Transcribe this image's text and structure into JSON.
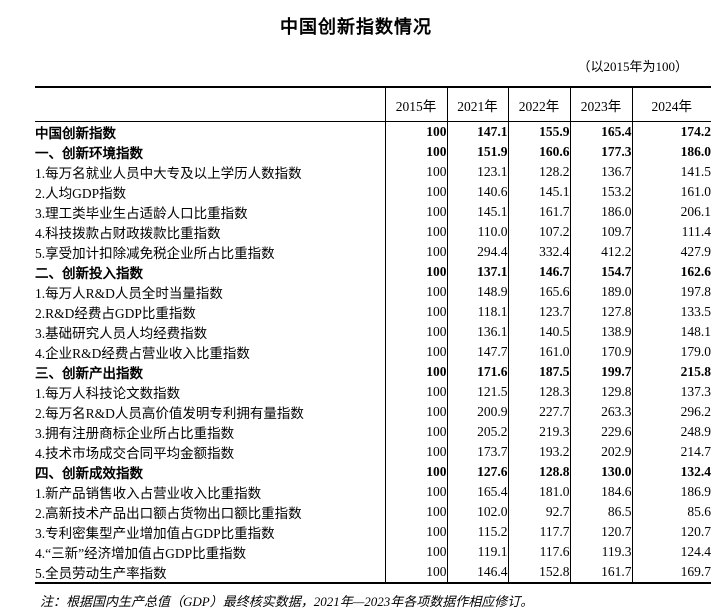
{
  "page": {
    "title": "中国创新指数情况",
    "subtitle": "（以2015年为100）",
    "footnote": "注：根据国内生产总值（GDP）最终核实数据，2021年—2023年各项数据作相应修订。"
  },
  "table": {
    "year_headers": [
      "2015年",
      "2021年",
      "2022年",
      "2023年",
      "2024年"
    ],
    "rows": [
      {
        "label": "中国创新指数",
        "level": 0,
        "bold": true,
        "values": [
          "100",
          "147.1",
          "155.9",
          "165.4",
          "174.2"
        ]
      },
      {
        "label": "一、创新环境指数",
        "level": 1,
        "bold": true,
        "values": [
          "100",
          "151.9",
          "160.6",
          "177.3",
          "186.0"
        ]
      },
      {
        "label": "1.每万名就业人员中大专及以上学历人数指数",
        "level": 2,
        "bold": false,
        "values": [
          "100",
          "123.1",
          "128.2",
          "136.7",
          "141.5"
        ]
      },
      {
        "label": "2.人均GDP指数",
        "level": 2,
        "bold": false,
        "values": [
          "100",
          "140.6",
          "145.1",
          "153.2",
          "161.0"
        ]
      },
      {
        "label": "3.理工类毕业生占适龄人口比重指数",
        "level": 2,
        "bold": false,
        "values": [
          "100",
          "145.1",
          "161.7",
          "186.0",
          "206.1"
        ]
      },
      {
        "label": "4.科技拨款占财政拨款比重指数",
        "level": 2,
        "bold": false,
        "values": [
          "100",
          "110.0",
          "107.2",
          "109.7",
          "111.4"
        ]
      },
      {
        "label": "5.享受加计扣除减免税企业所占比重指数",
        "level": 2,
        "bold": false,
        "values": [
          "100",
          "294.4",
          "332.4",
          "412.2",
          "427.9"
        ]
      },
      {
        "label": "二、创新投入指数",
        "level": 1,
        "bold": true,
        "values": [
          "100",
          "137.1",
          "146.7",
          "154.7",
          "162.6"
        ]
      },
      {
        "label": "1.每万人R&D人员全时当量指数",
        "level": 2,
        "bold": false,
        "values": [
          "100",
          "148.9",
          "165.6",
          "189.0",
          "197.8"
        ]
      },
      {
        "label": "2.R&D经费占GDP比重指数",
        "level": 2,
        "bold": false,
        "values": [
          "100",
          "118.1",
          "123.7",
          "127.8",
          "133.5"
        ]
      },
      {
        "label": "3.基础研究人员人均经费指数",
        "level": 2,
        "bold": false,
        "values": [
          "100",
          "136.1",
          "140.5",
          "138.9",
          "148.1"
        ]
      },
      {
        "label": "4.企业R&D经费占营业收入比重指数",
        "level": 2,
        "bold": false,
        "values": [
          "100",
          "147.7",
          "161.0",
          "170.9",
          "179.0"
        ]
      },
      {
        "label": "三、创新产出指数",
        "level": 1,
        "bold": true,
        "values": [
          "100",
          "171.6",
          "187.5",
          "199.7",
          "215.8"
        ]
      },
      {
        "label": "1.每万人科技论文数指数",
        "level": 2,
        "bold": false,
        "values": [
          "100",
          "121.5",
          "128.3",
          "129.8",
          "137.3"
        ]
      },
      {
        "label": "2.每万名R&D人员高价值发明专利拥有量指数",
        "level": 2,
        "bold": false,
        "values": [
          "100",
          "200.9",
          "227.7",
          "263.3",
          "296.2"
        ]
      },
      {
        "label": "3.拥有注册商标企业所占比重指数",
        "level": 2,
        "bold": false,
        "values": [
          "100",
          "205.2",
          "219.3",
          "229.6",
          "248.9"
        ]
      },
      {
        "label": "4.技术市场成交合同平均金额指数",
        "level": 2,
        "bold": false,
        "values": [
          "100",
          "173.7",
          "193.2",
          "202.9",
          "214.7"
        ]
      },
      {
        "label": "四、创新成效指数",
        "level": 1,
        "bold": true,
        "values": [
          "100",
          "127.6",
          "128.8",
          "130.0",
          "132.4"
        ]
      },
      {
        "label": "1.新产品销售收入占营业收入比重指数",
        "level": 2,
        "bold": false,
        "values": [
          "100",
          "165.4",
          "181.0",
          "184.6",
          "186.9"
        ]
      },
      {
        "label": "2.高新技术产品出口额占货物出口额比重指数",
        "level": 2,
        "bold": false,
        "values": [
          "100",
          "102.0",
          "92.7",
          "86.5",
          "85.6"
        ]
      },
      {
        "label": "3.专利密集型产业增加值占GDP比重指数",
        "level": 2,
        "bold": false,
        "values": [
          "100",
          "115.2",
          "117.7",
          "120.7",
          "120.7"
        ]
      },
      {
        "label": "4.“三新”经济增加值占GDP比重指数",
        "level": 2,
        "bold": false,
        "values": [
          "100",
          "119.1",
          "117.6",
          "119.3",
          "124.4"
        ]
      },
      {
        "label": "5.全员劳动生产率指数",
        "level": 2,
        "bold": false,
        "values": [
          "100",
          "146.4",
          "152.8",
          "161.7",
          "169.7"
        ]
      }
    ]
  }
}
